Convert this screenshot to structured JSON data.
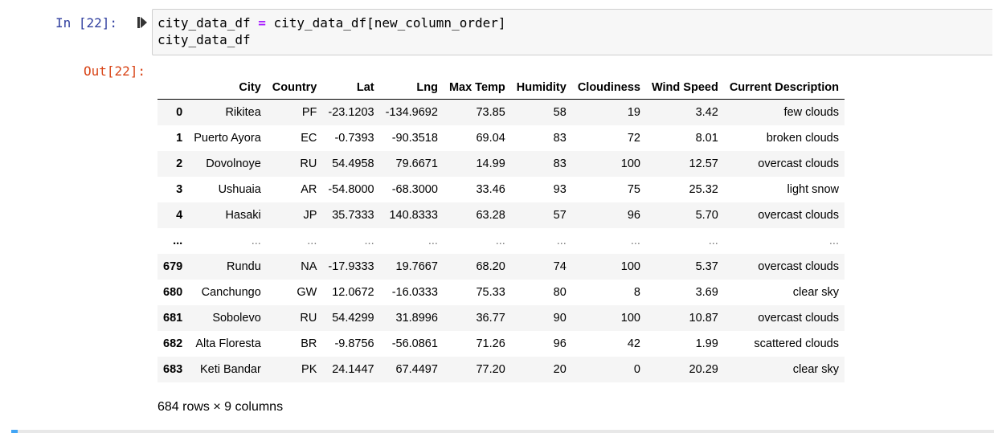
{
  "cell": {
    "in_prompt": "In [22]:",
    "out_prompt": "Out[22]:",
    "run_icon": "step-run-icon",
    "code_lines": [
      {
        "pre": "city_data_df ",
        "op": "=",
        "post": " city_data_df[new_column_order]"
      },
      {
        "pre": "city_data_df",
        "op": "",
        "post": ""
      }
    ]
  },
  "dataframe": {
    "index_header": "",
    "columns": [
      "City",
      "Country",
      "Lat",
      "Lng",
      "Max Temp",
      "Humidity",
      "Cloudiness",
      "Wind Speed",
      "Current Description"
    ],
    "rows": [
      {
        "index": "0",
        "cells": [
          "Rikitea",
          "PF",
          "-23.1203",
          "-134.9692",
          "73.85",
          "58",
          "19",
          "3.42",
          "few clouds"
        ]
      },
      {
        "index": "1",
        "cells": [
          "Puerto Ayora",
          "EC",
          "-0.7393",
          "-90.3518",
          "69.04",
          "83",
          "72",
          "8.01",
          "broken clouds"
        ]
      },
      {
        "index": "2",
        "cells": [
          "Dovolnoye",
          "RU",
          "54.4958",
          "79.6671",
          "14.99",
          "83",
          "100",
          "12.57",
          "overcast clouds"
        ]
      },
      {
        "index": "3",
        "cells": [
          "Ushuaia",
          "AR",
          "-54.8000",
          "-68.3000",
          "33.46",
          "93",
          "75",
          "25.32",
          "light snow"
        ]
      },
      {
        "index": "4",
        "cells": [
          "Hasaki",
          "JP",
          "35.7333",
          "140.8333",
          "63.28",
          "57",
          "96",
          "5.70",
          "overcast clouds"
        ]
      },
      {
        "index": "...",
        "cells": [
          "...",
          "...",
          "...",
          "...",
          "...",
          "...",
          "...",
          "...",
          "..."
        ],
        "ellipsis": true
      },
      {
        "index": "679",
        "cells": [
          "Rundu",
          "NA",
          "-17.9333",
          "19.7667",
          "68.20",
          "74",
          "100",
          "5.37",
          "overcast clouds"
        ]
      },
      {
        "index": "680",
        "cells": [
          "Canchungo",
          "GW",
          "12.0672",
          "-16.0333",
          "75.33",
          "80",
          "8",
          "3.69",
          "clear sky"
        ]
      },
      {
        "index": "681",
        "cells": [
          "Sobolevo",
          "RU",
          "54.4299",
          "31.8996",
          "36.77",
          "90",
          "100",
          "10.87",
          "overcast clouds"
        ]
      },
      {
        "index": "682",
        "cells": [
          "Alta Floresta",
          "BR",
          "-9.8756",
          "-56.0861",
          "71.26",
          "96",
          "42",
          "1.99",
          "scattered clouds"
        ]
      },
      {
        "index": "683",
        "cells": [
          "Keti Bandar",
          "PK",
          "24.1447",
          "67.4497",
          "77.20",
          "20",
          "0",
          "20.29",
          "clear sky"
        ]
      }
    ],
    "shape_info": "684 rows × 9 columns"
  }
}
